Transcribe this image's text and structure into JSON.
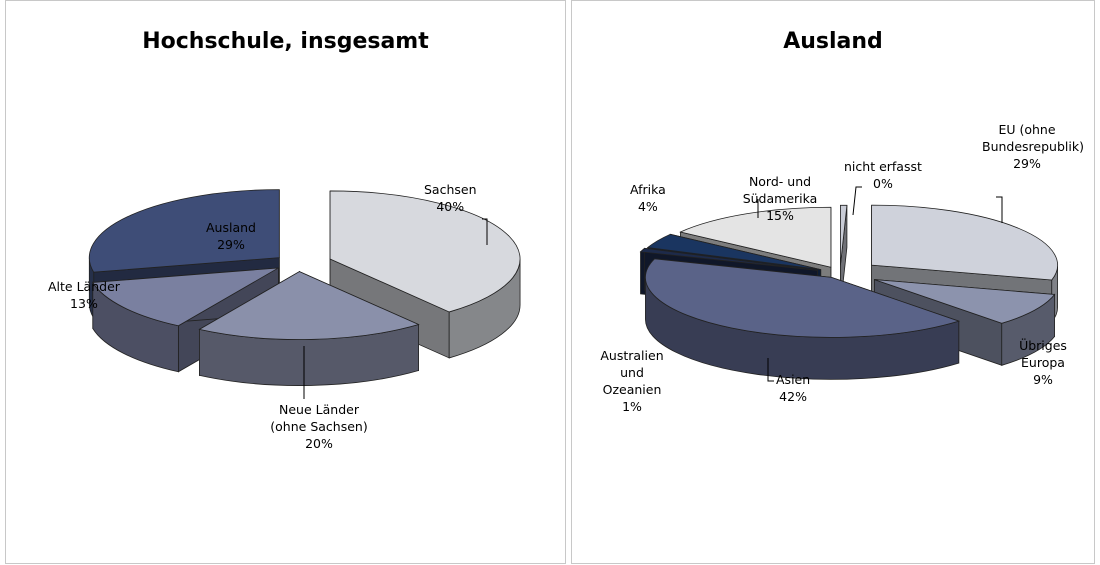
{
  "chart_data": [
    {
      "type": "pie",
      "title": "Hochschule, insgesamt",
      "slices": [
        {
          "label": "Sachsen",
          "value": 40,
          "value_label": "40%"
        },
        {
          "label": "Neue Länder (ohne Sachsen)",
          "value": 20,
          "value_label": "20%"
        },
        {
          "label": "Alte Länder",
          "value": 13,
          "value_label": "13%"
        },
        {
          "label": "Ausland",
          "value": 29,
          "value_label": "29%"
        }
      ],
      "colors": [
        "#d7d9de",
        "#8a90aa",
        "#7a80a0",
        "#3e4d77"
      ]
    },
    {
      "type": "pie",
      "title": "Ausland",
      "slices": [
        {
          "label": "EU (ohne Bundesrepublik)",
          "value": 29,
          "value_label": "29%"
        },
        {
          "label": "Übriges Europa",
          "value": 9,
          "value_label": "9%"
        },
        {
          "label": "Asien",
          "value": 42,
          "value_label": "42%"
        },
        {
          "label": "Australien und Ozeanien",
          "value": 1,
          "value_label": "1%"
        },
        {
          "label": "Afrika",
          "value": 4,
          "value_label": "4%"
        },
        {
          "label": "Nord- und Südamerika",
          "value": 15,
          "value_label": "15%"
        },
        {
          "label": "nicht erfasst",
          "value": 0,
          "value_label": "0%"
        }
      ],
      "colors": [
        "#cfd2db",
        "#8c93ad",
        "#5a6388",
        "#1d2a4a",
        "#1a3560",
        "#e4e4e4",
        "#c9ccd6"
      ]
    }
  ]
}
